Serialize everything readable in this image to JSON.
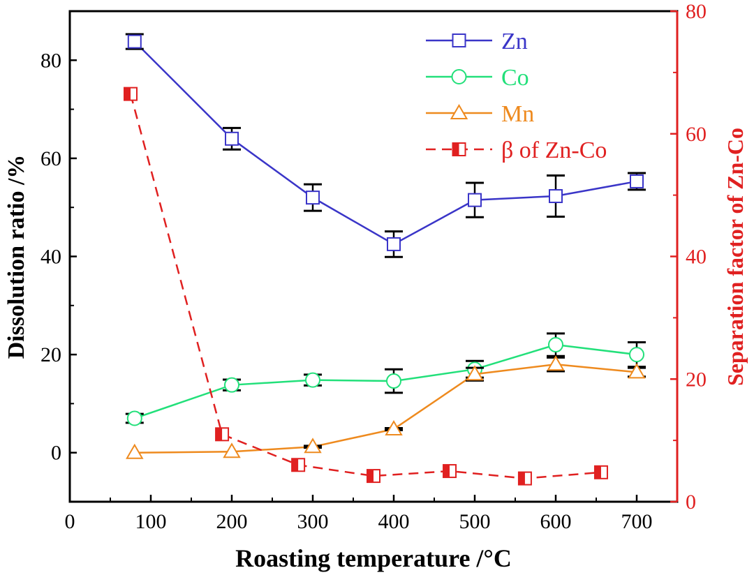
{
  "chart_data": {
    "type": "line",
    "xlabel": "Roasting temperature /°C",
    "ylabel": "Dissolution ratio /%",
    "y2label": "Separation factor of Zn-Co",
    "xlim": [
      0,
      750
    ],
    "ylim": [
      -10,
      90
    ],
    "y2lim": [
      0,
      80
    ],
    "x_ticks": [
      "0",
      "100",
      "200",
      "300",
      "400",
      "500",
      "600",
      "700"
    ],
    "y_ticks": [
      "0",
      "20",
      "40",
      "60",
      "80"
    ],
    "y2_ticks": [
      "0",
      "20",
      "40",
      "60",
      "80"
    ],
    "legend_position": "top-right",
    "series": [
      {
        "name": "Zn",
        "axis": "left",
        "marker": "square",
        "color": "#3a35c8",
        "dash": false,
        "x": [
          80,
          200,
          300,
          400,
          500,
          600,
          700
        ],
        "values": [
          83.8,
          64.0,
          52.0,
          42.5,
          51.5,
          52.3,
          55.3
        ],
        "errors": [
          1.5,
          2.2,
          2.7,
          2.6,
          3.5,
          4.2,
          1.7
        ]
      },
      {
        "name": "Co",
        "axis": "left",
        "marker": "circle",
        "color": "#22e07a",
        "dash": false,
        "x": [
          80,
          200,
          300,
          400,
          500,
          600,
          700
        ],
        "values": [
          7.0,
          13.8,
          14.8,
          14.6,
          17.0,
          22.0,
          20.0
        ],
        "errors": [
          0.9,
          1.1,
          1.1,
          2.4,
          1.7,
          2.3,
          2.5
        ]
      },
      {
        "name": "Mn",
        "axis": "left",
        "marker": "triangle",
        "color": "#ee8a1e",
        "dash": false,
        "x": [
          80,
          200,
          300,
          400,
          500,
          600,
          700
        ],
        "values": [
          0.0,
          0.2,
          1.2,
          4.8,
          16.0,
          18.0,
          16.4
        ],
        "errors": [
          0,
          0,
          0.2,
          0.2,
          1.3,
          1.4,
          0.9
        ]
      },
      {
        "name": "β of Zn-Co",
        "axis": "right",
        "marker": "half-square",
        "color": "#e02020",
        "dash": true,
        "x": [
          75,
          188,
          282,
          375,
          469,
          562,
          656
        ],
        "values": [
          66.5,
          11.0,
          6.0,
          4.2,
          5.0,
          3.8,
          4.8
        ]
      }
    ]
  }
}
